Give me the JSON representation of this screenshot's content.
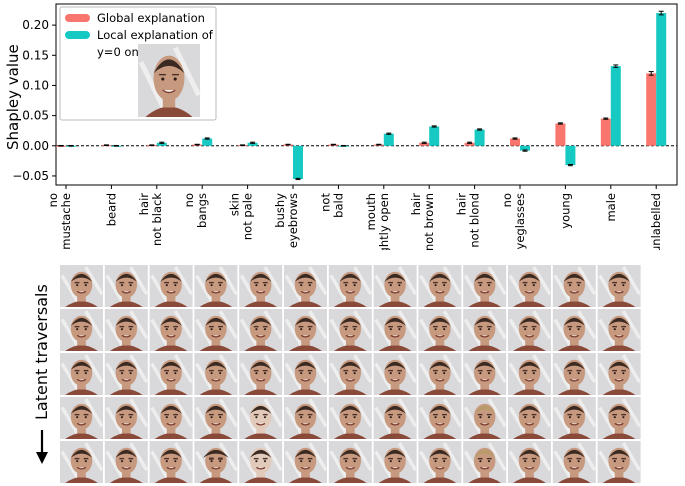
{
  "chart_data": {
    "type": "bar",
    "title": "",
    "xlabel": "",
    "ylabel": "Shapley value",
    "ylim": [
      -0.065,
      0.235
    ],
    "yticks": [
      -0.05,
      0.0,
      0.05,
      0.1,
      0.15,
      0.2
    ],
    "ytick_labels": [
      "−0.05",
      "0.00",
      "0.05",
      "0.10",
      "0.15",
      "0.20"
    ],
    "categories": [
      [
        "no",
        "mustache"
      ],
      [
        "beard"
      ],
      [
        "hair",
        "not black"
      ],
      [
        "no",
        "bangs"
      ],
      [
        "skin",
        "not pale"
      ],
      [
        "bushy",
        "eyebrows"
      ],
      [
        "not",
        "bald"
      ],
      [
        "mouth",
        "slightly open"
      ],
      [
        "hair",
        "not brown"
      ],
      [
        "hair",
        "not blond"
      ],
      [
        "no",
        "eyeglasses"
      ],
      [
        "young"
      ],
      [
        "male"
      ],
      [
        "unlabelled"
      ]
    ],
    "series": [
      {
        "name": "Global explanation",
        "color": "#f8766d",
        "values": [
          0.0,
          0.001,
          0.001,
          0.002,
          0.001,
          0.002,
          0.002,
          0.002,
          0.005,
          0.005,
          0.012,
          0.037,
          0.045,
          0.12
        ],
        "errors": [
          0.0005,
          0.0005,
          0.0005,
          0.0005,
          0.0005,
          0.0005,
          0.0005,
          0.0005,
          0.001,
          0.001,
          0.001,
          0.001,
          0.001,
          0.003
        ]
      },
      {
        "name": "Local explanation of",
        "color": "#17c9c3",
        "values": [
          0.0,
          0.0,
          0.005,
          0.012,
          0.005,
          -0.055,
          0.0,
          0.02,
          0.032,
          0.027,
          -0.008,
          -0.032,
          0.132,
          0.22
        ],
        "errors": [
          0.0005,
          0.0005,
          0.001,
          0.001,
          0.001,
          0.001,
          0.0005,
          0.001,
          0.001,
          0.001,
          0.001,
          0.001,
          0.002,
          0.003
        ]
      }
    ],
    "legend": {
      "position": "top-left",
      "local_suffix": "y=0 on:",
      "thumbnail": "face-thumbnail"
    },
    "zero_line": "dashed"
  },
  "traversal": {
    "label": "Latent traversals",
    "rows": 5,
    "columns": 13,
    "special_cells": [
      {
        "row": 3,
        "col": 4,
        "tone": "pale"
      },
      {
        "row": 4,
        "col": 4,
        "tone": "pale"
      },
      {
        "row": 3,
        "col": 9,
        "tone": "blond"
      },
      {
        "row": 4,
        "col": 9,
        "tone": "blond"
      },
      {
        "row": 4,
        "col": 3,
        "tone": "bushy"
      }
    ]
  },
  "colors": {
    "skin": "#c79a80",
    "hair": "#3a2a22",
    "background": "#d9d9dc"
  }
}
